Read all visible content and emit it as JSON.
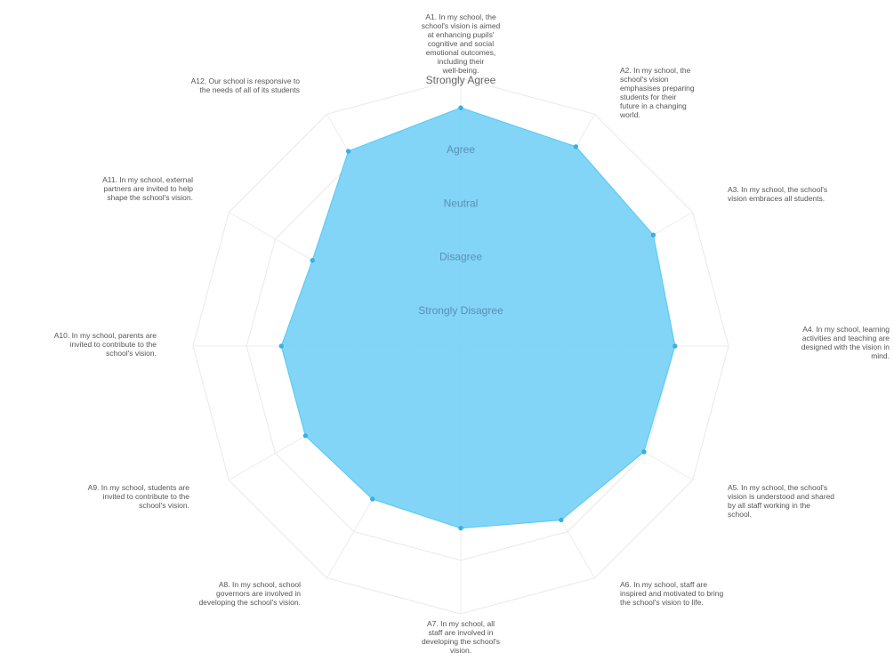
{
  "chart_data": {
    "type": "radar",
    "title": "",
    "scale_levels": [
      "Strongly Disagree",
      "Disagree",
      "Neutral",
      "Agree",
      "Strongly Agree"
    ],
    "range": [
      0,
      5
    ],
    "grid": true,
    "legend": "none",
    "colors": {
      "fill": "#7bd3f7",
      "stroke": "#5ecbf3",
      "point": "#39b4e6",
      "grid": "#e9e9e9",
      "level_text": "#5b8fb5",
      "category_text": "#555555"
    },
    "categories": [
      "A1. In my school, the school's vision is aimed at enhancing pupils' cognitive and social emotional outcomes, including their well-being.",
      "A2. In my school, the school's vision emphasises preparing students for their future in a changing world.",
      "A3. In my school, the school's vision embraces all students.",
      "A4. In my school, learning activities and teaching are designed with the vision in mind.",
      "A5. In my school, the school's vision is understood and shared by all staff working in the school.",
      "A6. In my school, staff are inspired and motivated to bring the school's vision to life.",
      "A7. In my school, all staff are involved in developing the school's vision.",
      "A8. In my school, school governors are involved in developing the school's vision.",
      "A9. In my school, students are invited to contribute to the school's vision.",
      "A10. In my school, parents are invited to contribute to the school's vision.",
      "A11. In my school, external partners are invited to help shape the school's vision.",
      "A12. Our school is responsive to the needs of all of its students"
    ],
    "series": [
      {
        "values": [
          4.45,
          4.3,
          4.15,
          4.0,
          3.95,
          3.75,
          3.4,
          3.3,
          3.35,
          3.35,
          3.2,
          4.2
        ]
      }
    ]
  }
}
